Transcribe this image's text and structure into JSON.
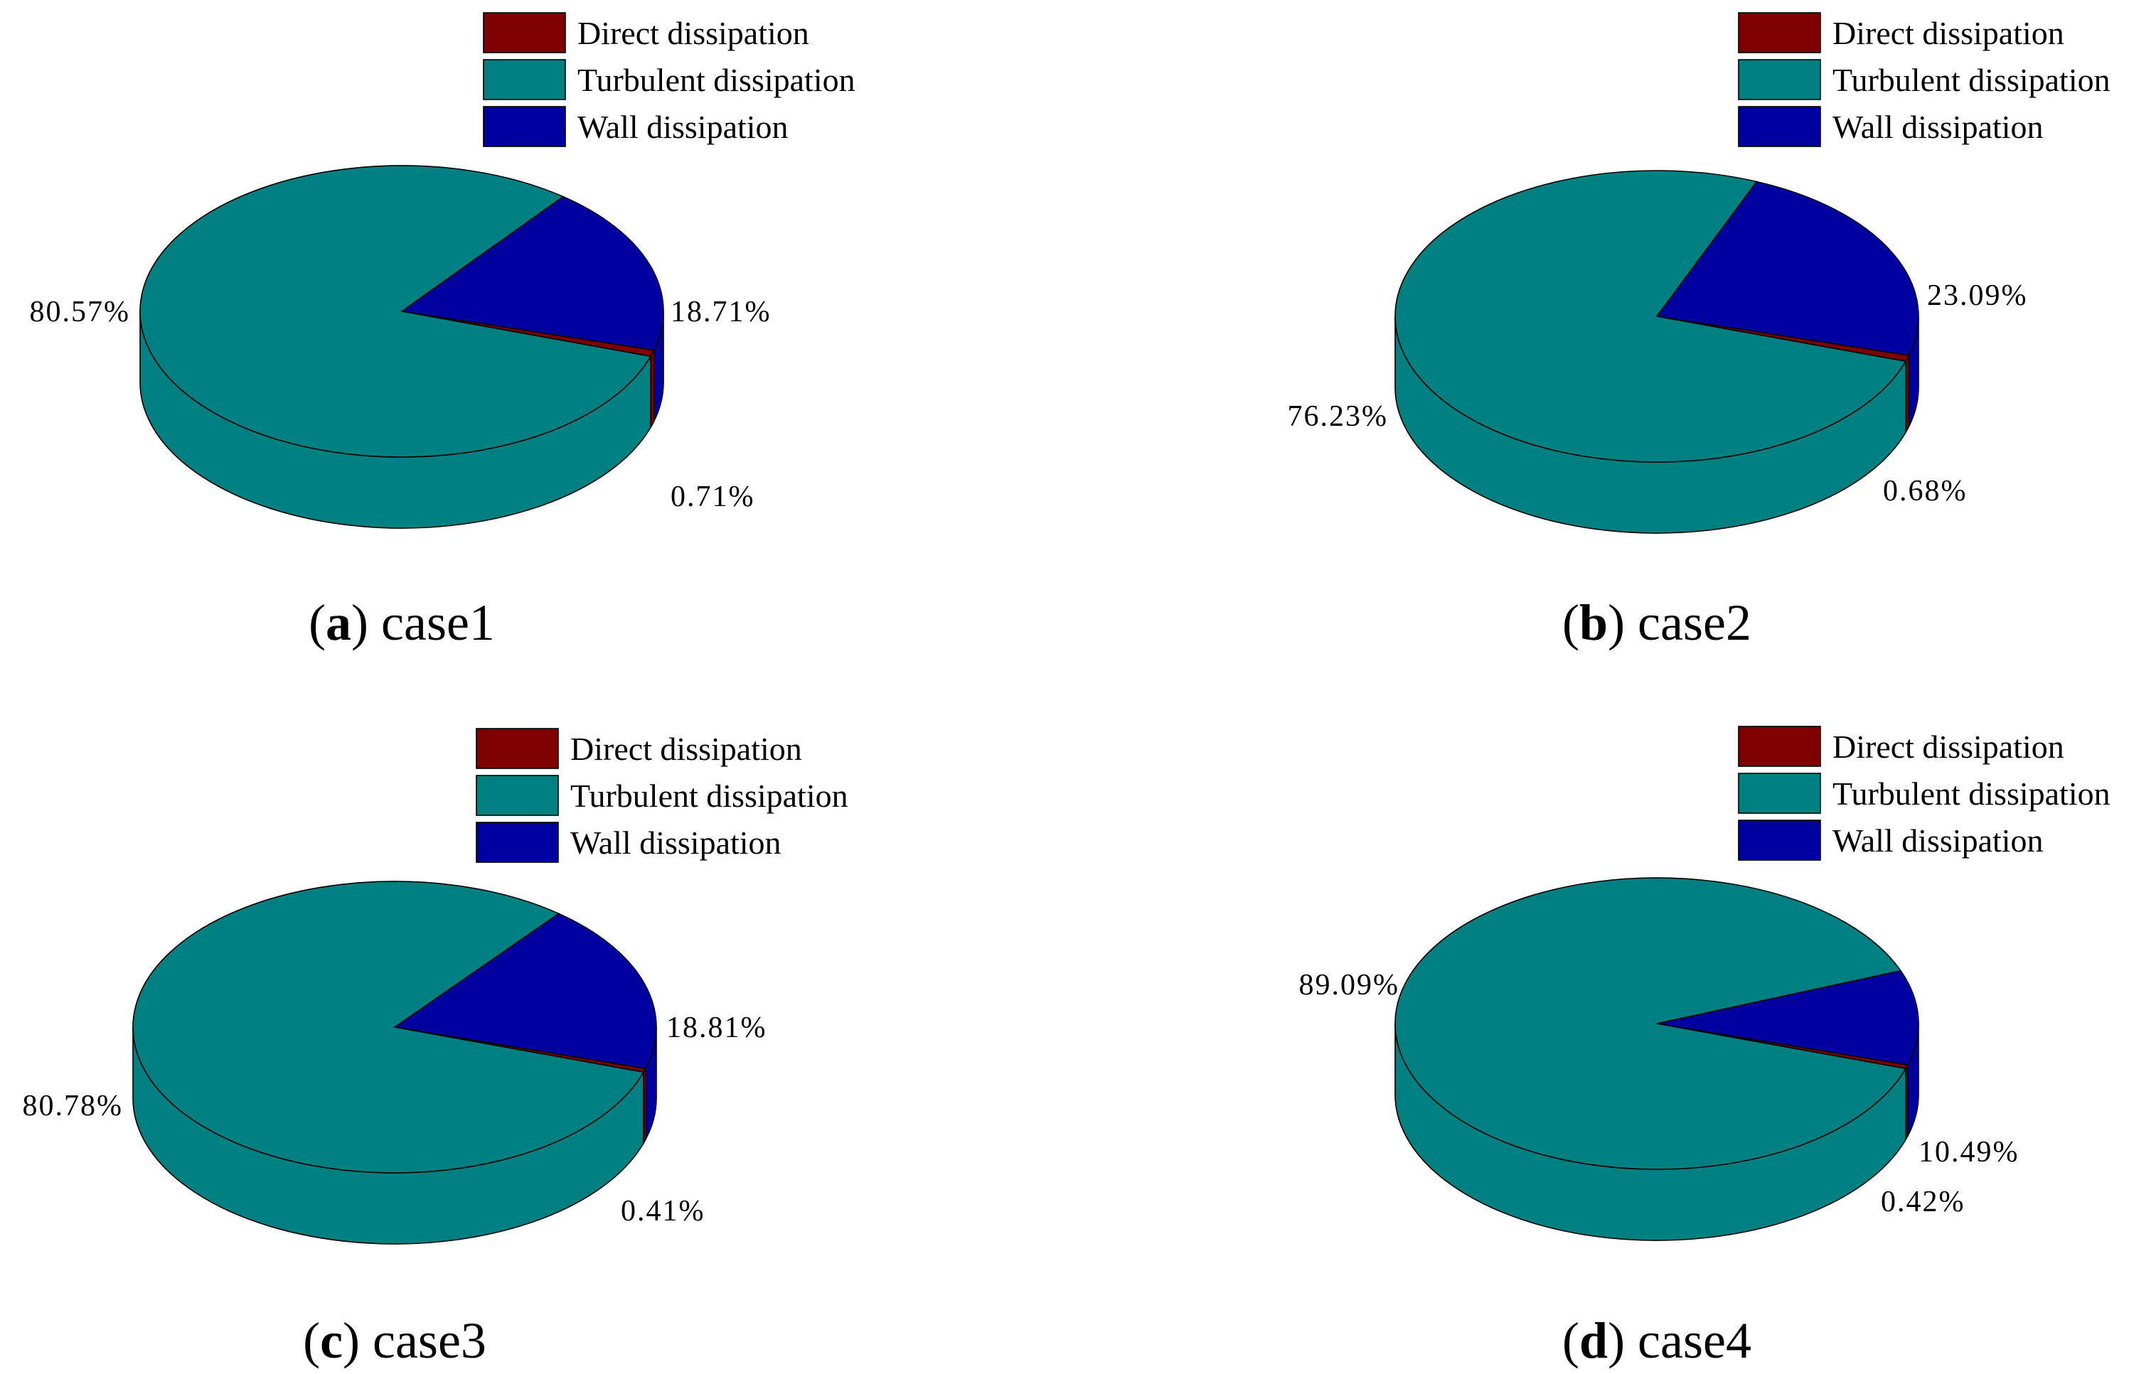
{
  "colors": {
    "direct": "#7f0000",
    "turbulent": "#008080",
    "wall": "#0000a0",
    "edge": "#000000"
  },
  "chart_data": [
    {
      "type": "pie",
      "title": "case1",
      "caption_letter": "a",
      "legend": [
        "Direct dissipation",
        "Turbulent dissipation",
        "Wall dissipation"
      ],
      "slices": [
        {
          "name": "Direct dissipation",
          "value": 0.71,
          "label": "0.71%"
        },
        {
          "name": "Turbulent dissipation",
          "value": 80.57,
          "label": "80.57%"
        },
        {
          "name": "Wall dissipation",
          "value": 18.71,
          "label": "18.71%"
        }
      ]
    },
    {
      "type": "pie",
      "title": "case2",
      "caption_letter": "b",
      "legend": [
        "Direct dissipation",
        "Turbulent dissipation",
        "Wall dissipation"
      ],
      "slices": [
        {
          "name": "Direct dissipation",
          "value": 0.68,
          "label": "0.68%"
        },
        {
          "name": "Turbulent dissipation",
          "value": 76.23,
          "label": "76.23%"
        },
        {
          "name": "Wall dissipation",
          "value": 23.09,
          "label": "23.09%"
        }
      ]
    },
    {
      "type": "pie",
      "title": "case3",
      "caption_letter": "c",
      "legend": [
        "Direct dissipation",
        "Turbulent dissipation",
        "Wall dissipation"
      ],
      "slices": [
        {
          "name": "Direct dissipation",
          "value": 0.41,
          "label": "0.41%"
        },
        {
          "name": "Turbulent dissipation",
          "value": 80.78,
          "label": "80.78%"
        },
        {
          "name": "Wall dissipation",
          "value": 18.81,
          "label": "18.81%"
        }
      ]
    },
    {
      "type": "pie",
      "title": "case4",
      "caption_letter": "d",
      "legend": [
        "Direct dissipation",
        "Turbulent dissipation",
        "Wall dissipation"
      ],
      "slices": [
        {
          "name": "Direct dissipation",
          "value": 0.42,
          "label": "0.42%"
        },
        {
          "name": "Turbulent dissipation",
          "value": 89.09,
          "label": "89.09%"
        },
        {
          "name": "Wall dissipation",
          "value": 10.49,
          "label": "10.49%"
        }
      ]
    }
  ]
}
